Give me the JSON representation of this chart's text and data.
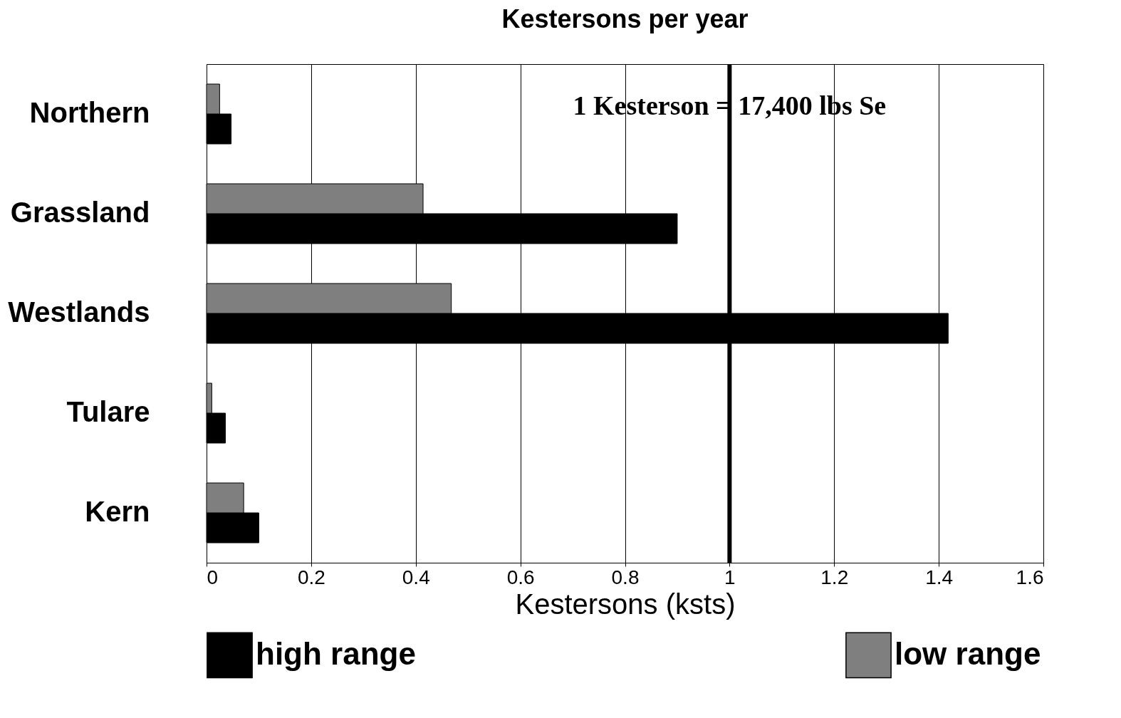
{
  "chart_data": {
    "type": "bar",
    "orientation": "horizontal",
    "title": "Kestersons per year",
    "xlabel": "Kestersons (ksts)",
    "categories": [
      "Northern",
      "Grassland",
      "Westlands",
      "Tulare",
      "Kern"
    ],
    "series": [
      {
        "name": "high range",
        "color": "#000000",
        "values": [
          0.047,
          0.9,
          1.418,
          0.036,
          0.1
        ]
      },
      {
        "name": "low range",
        "color": "#7f7f7f",
        "values": [
          0.025,
          0.414,
          0.468,
          0.01,
          0.071
        ]
      }
    ],
    "xlim": [
      0,
      1.6
    ],
    "xticks": [
      0,
      0.2,
      0.4,
      0.6,
      0.8,
      1,
      1.2,
      1.4,
      1.6
    ],
    "grid": "x",
    "legend": "bottom",
    "ref_lines": [
      {
        "axis": "x",
        "value": 1,
        "label": "1 Kesterson = 17,400 lbs Se"
      }
    ]
  }
}
